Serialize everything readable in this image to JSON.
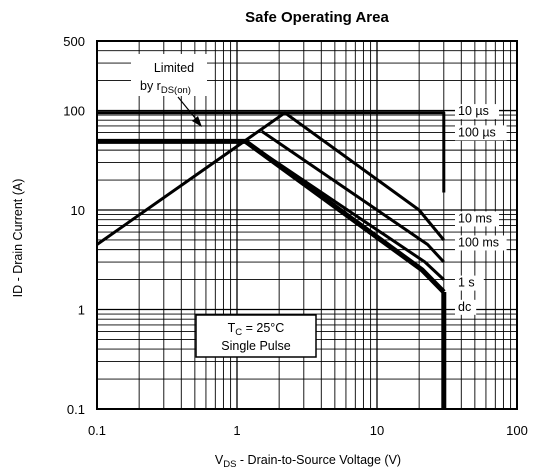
{
  "chart_data": {
    "type": "line",
    "title": "Safe Operating Area",
    "xlabel": {
      "symbol": "V",
      "subscript": "DS",
      "text": " -  Drain-to-Source Voltage (V)"
    },
    "ylabel": "ID - Drain Current (A)",
    "x_scale": "log",
    "y_scale": "log",
    "xlim": [
      0.1,
      100
    ],
    "ylim": [
      0.1,
      500
    ],
    "x_ticks": [
      {
        "value": 0.1,
        "label": "0.1"
      },
      {
        "value": 1,
        "label": "1"
      },
      {
        "value": 10,
        "label": "10"
      },
      {
        "value": 100,
        "label": "100"
      }
    ],
    "y_ticks": [
      {
        "value": 0.1,
        "label": "0.1"
      },
      {
        "value": 1,
        "label": "1"
      },
      {
        "value": 10,
        "label": "10"
      },
      {
        "value": 100,
        "label": "100"
      },
      {
        "value": 500,
        "label": "500"
      }
    ],
    "grid": true,
    "series": [
      {
        "name": "10 µs",
        "points": [
          [
            0.1,
            95
          ],
          [
            30,
            95
          ],
          [
            30,
            15
          ]
        ],
        "weight": 3
      },
      {
        "name": "100 µs",
        "points": [
          [
            0.1,
            4.5
          ],
          [
            2.2,
            95
          ],
          [
            20,
            10
          ],
          [
            30,
            5
          ]
        ],
        "weight": 3
      },
      {
        "name": "10 ms",
        "points": [
          [
            1.5,
            62
          ],
          [
            23,
            4.5
          ],
          [
            30,
            3
          ]
        ],
        "weight": 3
      },
      {
        "name": "100 ms",
        "points": [
          [
            1.15,
            49
          ],
          [
            22,
            3
          ],
          [
            30,
            2
          ]
        ],
        "weight": 3
      },
      {
        "name": "1 s",
        "points": [
          [
            0.1,
            49
          ],
          [
            1.15,
            49
          ],
          [
            21,
            2.5
          ],
          [
            30,
            1.5
          ]
        ],
        "weight": 5
      },
      {
        "name": "dc",
        "points": [
          [
            30,
            1.5
          ],
          [
            30,
            0.1
          ]
        ],
        "weight": 5
      }
    ],
    "series_labels": [
      {
        "text": "10 µs",
        "y": 90
      },
      {
        "text": "100 µs",
        "y": 55
      },
      {
        "text": "10 ms",
        "y": 7.5
      },
      {
        "text": "100 ms",
        "y": 4.3
      },
      {
        "text": "1 s",
        "y": 1.7
      },
      {
        "text": "dc",
        "y": 0.97
      }
    ],
    "annotations": {
      "limited": {
        "line1": "Limited",
        "line2_prefix": "by r",
        "line2_sub": "DS(on)"
      },
      "conditions": {
        "line1_symbol": "T",
        "line1_sub": "C",
        "line1_rest": " = 25°C",
        "line2": "Single Pulse"
      }
    }
  }
}
